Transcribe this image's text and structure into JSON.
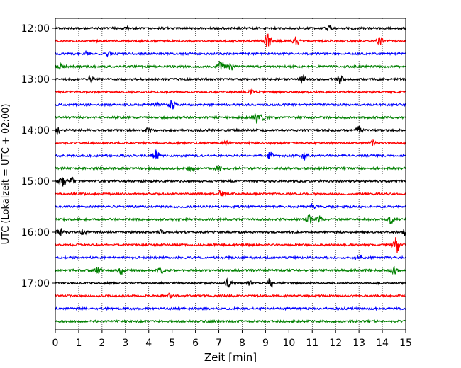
{
  "chart_data": {
    "type": "line",
    "title": "",
    "xlabel": "Zeit  [min]",
    "ylabel": "UTC (Lokalzeit = UTC + 02:00)",
    "xlim": [
      0,
      15
    ],
    "x_ticks": [
      "0",
      "1",
      "2",
      "3",
      "4",
      "5",
      "6",
      "7",
      "8",
      "9",
      "10",
      "11",
      "12",
      "13",
      "14",
      "15"
    ],
    "y_ticks": [
      "12:00",
      "13:00",
      "14:00",
      "15:00",
      "16:00",
      "17:00"
    ],
    "grid": "vertical dotted at each minute",
    "trace_colors": [
      "#000000",
      "#ff0000",
      "#0000ff",
      "#008000"
    ],
    "series": [
      {
        "start": "12:00",
        "color": "#000000",
        "events": [
          [
            3.0,
            0.6
          ],
          [
            11.7,
            0.8
          ]
        ]
      },
      {
        "start": "12:15",
        "color": "#ff0000",
        "events": [
          [
            9.1,
            2.5
          ],
          [
            10.3,
            1.5
          ],
          [
            13.9,
            1.2
          ]
        ]
      },
      {
        "start": "12:30",
        "color": "#0000ff",
        "events": [
          [
            1.3,
            0.8
          ],
          [
            2.3,
            0.8
          ]
        ]
      },
      {
        "start": "12:45",
        "color": "#008000",
        "events": [
          [
            0.2,
            0.8
          ],
          [
            7.1,
            1.8
          ],
          [
            7.5,
            1.2
          ]
        ]
      },
      {
        "start": "13:00",
        "color": "#000000",
        "events": [
          [
            1.5,
            0.8
          ],
          [
            10.6,
            1.2
          ],
          [
            12.2,
            1.5
          ]
        ]
      },
      {
        "start": "13:15",
        "color": "#ff0000",
        "events": [
          [
            8.4,
            0.6
          ]
        ]
      },
      {
        "start": "13:30",
        "color": "#0000ff",
        "events": [
          [
            4.3,
            0.8
          ],
          [
            5.0,
            1.6
          ]
        ]
      },
      {
        "start": "13:45",
        "color": "#008000",
        "events": [
          [
            8.6,
            1.4
          ],
          [
            8.9,
            1.0
          ]
        ]
      },
      {
        "start": "14:00",
        "color": "#000000",
        "events": [
          [
            0.1,
            1.2
          ],
          [
            4.0,
            1.0
          ],
          [
            13.0,
            1.2
          ]
        ]
      },
      {
        "start": "14:15",
        "color": "#ff0000",
        "events": [
          [
            7.3,
            0.6
          ],
          [
            13.6,
            0.6
          ]
        ]
      },
      {
        "start": "14:30",
        "color": "#0000ff",
        "events": [
          [
            4.3,
            1.8
          ],
          [
            9.2,
            1.0
          ],
          [
            10.7,
            1.4
          ]
        ]
      },
      {
        "start": "14:45",
        "color": "#008000",
        "events": [
          [
            5.8,
            1.0
          ],
          [
            7.0,
            1.0
          ]
        ]
      },
      {
        "start": "15:00",
        "color": "#000000",
        "events": [
          [
            0.3,
            1.8
          ],
          [
            0.7,
            1.0
          ]
        ]
      },
      {
        "start": "15:15",
        "color": "#ff0000",
        "events": [
          [
            7.1,
            1.0
          ]
        ]
      },
      {
        "start": "15:30",
        "color": "#0000ff",
        "events": [
          [
            11.0,
            0.6
          ]
        ]
      },
      {
        "start": "15:45",
        "color": "#008000",
        "events": [
          [
            10.9,
            1.5
          ],
          [
            11.3,
            1.1
          ],
          [
            14.4,
            1.8
          ]
        ]
      },
      {
        "start": "16:00",
        "color": "#000000",
        "events": [
          [
            0.2,
            1.2
          ],
          [
            1.2,
            0.6
          ],
          [
            4.5,
            0.8
          ],
          [
            15.0,
            1.2
          ]
        ]
      },
      {
        "start": "16:15",
        "color": "#ff0000",
        "events": [
          [
            14.6,
            2.5
          ]
        ]
      },
      {
        "start": "16:30",
        "color": "#0000ff",
        "events": [
          [
            13.0,
            0.6
          ]
        ]
      },
      {
        "start": "16:45",
        "color": "#008000",
        "events": [
          [
            1.8,
            1.2
          ],
          [
            2.8,
            1.2
          ],
          [
            4.5,
            1.0
          ],
          [
            14.5,
            1.2
          ]
        ]
      },
      {
        "start": "17:00",
        "color": "#000000",
        "events": [
          [
            7.4,
            1.2
          ],
          [
            9.2,
            1.8
          ],
          [
            8.3,
            0.6
          ]
        ]
      },
      {
        "start": "17:15",
        "color": "#ff0000",
        "events": [
          [
            4.9,
            0.6
          ]
        ]
      },
      {
        "start": "17:30",
        "color": "#0000ff",
        "events": []
      },
      {
        "start": "17:45",
        "color": "#008000",
        "events": []
      }
    ]
  }
}
